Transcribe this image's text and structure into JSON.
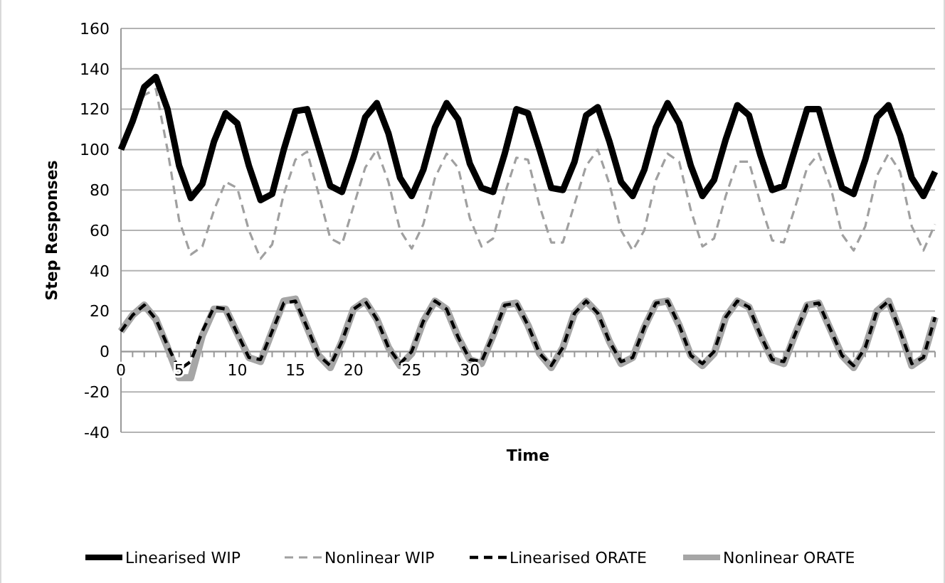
{
  "chart_data": {
    "type": "line",
    "xlabel": "Time",
    "ylabel": "Step Responses",
    "categories": [
      "0",
      null,
      null,
      null,
      null,
      "5",
      null,
      null,
      null,
      null,
      "10",
      null,
      null,
      null,
      null,
      "15",
      null,
      null,
      null,
      null,
      "20",
      null,
      null,
      null,
      null,
      "25",
      null,
      null,
      null,
      null,
      "30",
      null,
      null,
      null,
      null,
      null,
      null,
      null,
      null,
      null,
      null,
      null,
      null,
      null,
      null,
      null,
      null,
      null,
      null,
      null,
      null,
      null,
      null,
      null,
      null,
      null,
      null,
      null,
      null,
      null,
      null,
      null,
      null,
      null,
      null,
      null,
      null,
      null,
      null,
      null,
      null
    ],
    "ylim": [
      -40,
      160
    ],
    "yticks": [
      -40,
      -20,
      0,
      20,
      40,
      60,
      80,
      100,
      120,
      140,
      160
    ],
    "grid": "y",
    "legend": "bottom",
    "series": [
      {
        "name": "Linearised WIP",
        "color": "#000000",
        "line_style": "solid",
        "values": [
          100,
          114,
          131,
          136,
          120,
          92,
          76,
          83,
          104,
          118,
          113,
          92,
          75,
          78,
          100,
          119,
          120,
          101,
          82,
          79,
          96,
          116,
          123,
          108,
          86,
          77,
          90,
          111,
          123,
          115,
          93,
          81,
          79,
          98,
          120,
          118,
          100,
          81,
          80,
          94,
          117,
          121,
          104,
          84,
          77,
          90,
          111,
          123,
          113,
          92,
          77,
          85,
          105,
          122,
          117,
          97,
          80,
          82,
          101,
          120,
          120,
          100,
          81,
          78,
          95,
          116,
          122,
          107,
          86,
          77,
          89
        ]
      },
      {
        "name": "Nonlinear WIP",
        "color": "#a0a0a0",
        "line_style": "dashed",
        "values": [
          100,
          112,
          127,
          130,
          100,
          65,
          48,
          52,
          70,
          84,
          81,
          60,
          46,
          53,
          78,
          95,
          99,
          78,
          56,
          53,
          72,
          91,
          100,
          84,
          60,
          51,
          63,
          86,
          98,
          91,
          66,
          52,
          56,
          78,
          96,
          95,
          72,
          54,
          54,
          73,
          92,
          100,
          83,
          60,
          50,
          60,
          85,
          98,
          94,
          70,
          52,
          56,
          77,
          94,
          94,
          73,
          55,
          54,
          72,
          91,
          98,
          82,
          58,
          50,
          62,
          87,
          98,
          89,
          62,
          50,
          63
        ]
      },
      {
        "name": "Linearised ORATE",
        "color": "#000000",
        "line_style": "dashed",
        "values": [
          10,
          18,
          23,
          16,
          3,
          -9,
          -5,
          10,
          22,
          21,
          9,
          -3,
          -4,
          10,
          24,
          25,
          12,
          -2,
          -7,
          5,
          21,
          25,
          16,
          2,
          -6,
          0,
          15,
          25,
          21,
          7,
          -4,
          -5,
          8,
          23,
          24,
          13,
          -1,
          -7,
          2,
          19,
          25,
          19,
          5,
          -5,
          -3,
          12,
          24,
          25,
          13,
          -2,
          -6,
          0,
          17,
          25,
          22,
          8,
          -4,
          -5,
          9,
          23,
          24,
          11,
          -2,
          -7,
          2,
          20,
          25,
          10,
          -6,
          -3,
          17
        ]
      },
      {
        "name": "Nonlinear ORATE",
        "color": "#a6a6a6",
        "line_style": "solid",
        "values": [
          10,
          18,
          23,
          16,
          2,
          -13,
          -13,
          8,
          21,
          21,
          9,
          -3,
          -5,
          10,
          25,
          26,
          12,
          -2,
          -8,
          5,
          21,
          25,
          16,
          2,
          -7,
          -1,
          15,
          25,
          21,
          7,
          -4,
          -6,
          8,
          23,
          24,
          13,
          -1,
          -8,
          2,
          19,
          25,
          19,
          5,
          -6,
          -3,
          12,
          24,
          25,
          13,
          -2,
          -7,
          -1,
          17,
          25,
          22,
          8,
          -4,
          -6,
          9,
          23,
          24,
          11,
          -2,
          -8,
          2,
          20,
          25,
          10,
          -7,
          -3,
          17
        ]
      }
    ]
  }
}
